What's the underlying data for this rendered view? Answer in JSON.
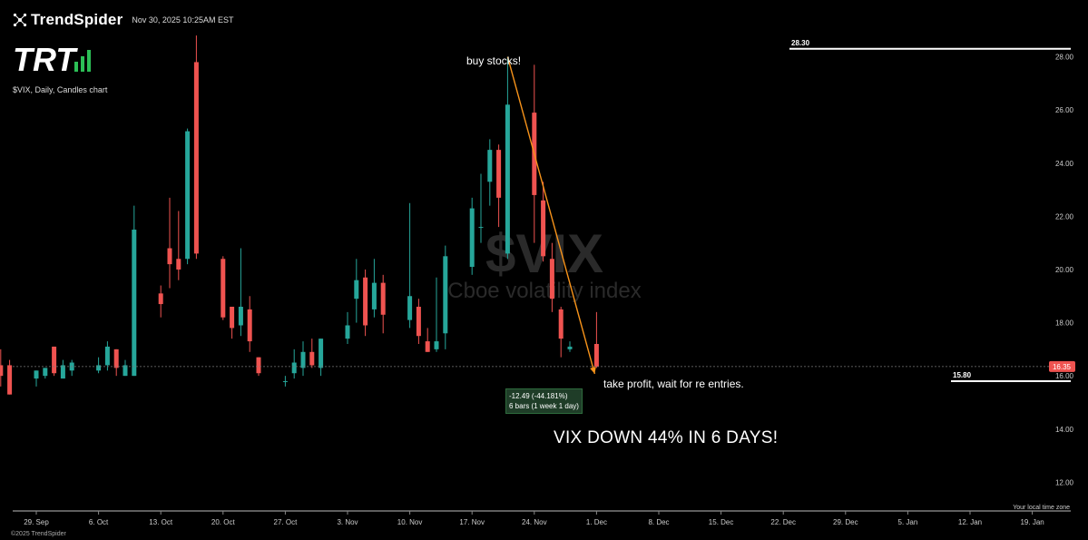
{
  "header": {
    "brand": "TrendSpider",
    "timestamp": "Nov 30, 2025 10:25AM EST",
    "logo_text": "TRT",
    "chart_subtitle": "$VIX, Daily, Candles chart",
    "copyright": "©2025 TrendSpider",
    "timezone_label": "Your local time zone"
  },
  "watermark": {
    "symbol": "$VIX",
    "name": "Cboe volatility index"
  },
  "annotations": {
    "top": "buy stocks!",
    "right": "take profit, wait for re entries.",
    "headline": "VIX DOWN 44% IN 6 DAYS!",
    "measure_line1": "-12.49 (-44.181%)",
    "measure_line2": "6 bars (1 week 1 day)"
  },
  "colors": {
    "up": "#26a69a",
    "down": "#ef5350",
    "arrow": "#f7931a",
    "price_tag": "#ef5350",
    "background": "#000000"
  },
  "chart_data": {
    "type": "candlestick",
    "ylim": [
      11.5,
      28.6
    ],
    "y_ticks": [
      12.0,
      14.0,
      16.0,
      18.0,
      20.0,
      22.0,
      24.0,
      26.0,
      28.0
    ],
    "x_ticks": [
      "29. Sep",
      "6. Oct",
      "13. Oct",
      "20. Oct",
      "27. Oct",
      "3. Nov",
      "10. Nov",
      "17. Nov",
      "24. Nov",
      "1. Dec",
      "8. Dec",
      "15. Dec",
      "22. Dec",
      "29. Dec",
      "5. Jan",
      "12. Jan",
      "19. Jan"
    ],
    "current_price": "16.35",
    "levels": [
      {
        "label": "28.30",
        "value": 28.3
      },
      {
        "label": "15.80",
        "value": 15.8
      }
    ],
    "ohlc": [
      [
        "2025-09-25",
        16.4,
        17.0,
        15.6,
        16.0
      ],
      [
        "2025-09-26",
        16.4,
        16.6,
        15.3,
        15.3
      ],
      [
        "2025-09-29",
        15.9,
        16.2,
        15.6,
        16.2
      ],
      [
        "2025-09-30",
        16.0,
        16.3,
        15.9,
        16.3
      ],
      [
        "2025-10-01",
        17.1,
        17.1,
        16.0,
        16.1
      ],
      [
        "2025-10-02",
        15.9,
        16.6,
        15.9,
        16.4
      ],
      [
        "2025-10-03",
        16.2,
        16.6,
        16.0,
        16.5
      ],
      [
        "2025-10-06",
        16.2,
        16.7,
        16.1,
        16.4
      ],
      [
        "2025-10-07",
        16.4,
        17.3,
        16.2,
        17.1
      ],
      [
        "2025-10-08",
        17.0,
        17.0,
        16.0,
        16.3
      ],
      [
        "2025-10-09",
        16.0,
        16.6,
        16.0,
        16.4
      ],
      [
        "2025-10-10",
        16.0,
        22.4,
        16.0,
        21.5
      ],
      [
        "2025-10-13",
        19.1,
        19.4,
        18.2,
        18.7
      ],
      [
        "2025-10-14",
        20.8,
        22.7,
        19.3,
        20.2
      ],
      [
        "2025-10-15",
        20.4,
        22.2,
        19.6,
        20.0
      ],
      [
        "2025-10-16",
        20.4,
        25.3,
        20.2,
        25.2
      ],
      [
        "2025-10-17",
        27.8,
        28.8,
        20.4,
        20.6
      ],
      [
        "2025-10-20",
        20.4,
        20.5,
        18.1,
        18.2
      ],
      [
        "2025-10-21",
        18.6,
        18.6,
        17.4,
        17.8
      ],
      [
        "2025-10-22",
        17.9,
        20.8,
        17.5,
        18.6
      ],
      [
        "2025-10-23",
        18.5,
        19.0,
        16.9,
        17.3
      ],
      [
        "2025-10-24",
        16.7,
        16.7,
        16.0,
        16.1
      ],
      [
        "2025-10-27",
        15.8,
        16.0,
        15.6,
        15.8
      ],
      [
        "2025-10-28",
        16.1,
        17.0,
        15.9,
        16.5
      ],
      [
        "2025-10-29",
        16.3,
        17.3,
        16.0,
        16.9
      ],
      [
        "2025-10-30",
        16.9,
        17.4,
        16.3,
        16.4
      ],
      [
        "2025-10-31",
        16.3,
        17.4,
        16.0,
        17.4
      ],
      [
        "2025-11-03",
        17.4,
        18.4,
        17.2,
        17.9
      ],
      [
        "2025-11-04",
        18.9,
        20.4,
        18.0,
        19.6
      ],
      [
        "2025-11-05",
        19.7,
        20.0,
        17.5,
        17.9
      ],
      [
        "2025-11-06",
        18.5,
        20.4,
        18.2,
        19.5
      ],
      [
        "2025-11-07",
        19.5,
        19.8,
        17.6,
        18.3
      ],
      [
        "2025-11-10",
        18.1,
        22.5,
        17.8,
        19.0
      ],
      [
        "2025-11-11",
        18.6,
        18.9,
        17.2,
        17.5
      ],
      [
        "2025-11-12",
        17.3,
        17.8,
        16.9,
        16.9
      ],
      [
        "2025-11-13",
        17.0,
        19.7,
        16.9,
        17.3
      ],
      [
        "2025-11-14",
        17.6,
        20.9,
        17.0,
        20.5
      ],
      [
        "2025-11-17",
        20.1,
        22.7,
        19.8,
        22.3
      ],
      [
        "2025-11-18",
        21.6,
        23.6,
        21.0,
        21.6
      ],
      [
        "2025-11-19",
        23.3,
        24.9,
        22.4,
        24.5
      ],
      [
        "2025-11-20",
        24.5,
        24.7,
        21.6,
        22.7
      ],
      [
        "2025-11-21",
        20.6,
        28.0,
        20.4,
        26.2
      ],
      [
        "2025-11-24",
        25.9,
        27.7,
        21.0,
        22.8
      ],
      [
        "2025-11-25",
        22.6,
        23.3,
        20.3,
        20.5
      ],
      [
        "2025-11-26",
        20.4,
        21.0,
        18.4,
        18.9
      ],
      [
        "2025-11-27",
        18.5,
        18.6,
        16.7,
        17.4
      ],
      [
        "2025-11-28",
        17.0,
        17.3,
        16.9,
        17.1
      ],
      [
        "2025-12-01",
        17.2,
        18.4,
        16.3,
        16.35
      ]
    ]
  }
}
